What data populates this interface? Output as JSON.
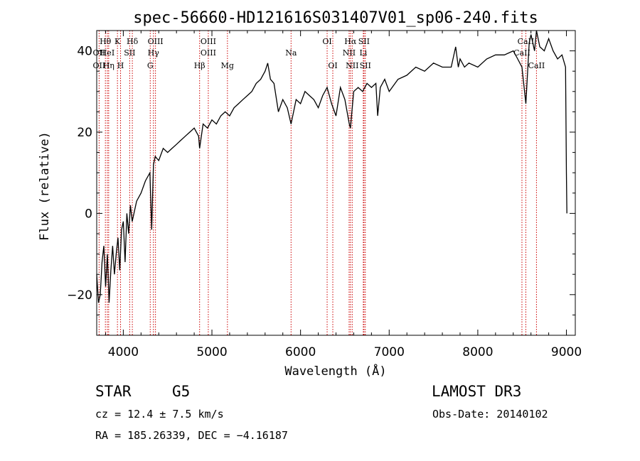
{
  "chart_data": {
    "type": "line",
    "title": "spec-56660-HD121616S031407V01_sp06-240.fits",
    "xlabel": "Wavelength (Å)",
    "ylabel": "Flux (relative)",
    "xlim": [
      3700,
      9100
    ],
    "ylim": [
      -30,
      45
    ],
    "xticks": [
      4000,
      5000,
      6000,
      7000,
      8000,
      9000
    ],
    "xtick_labels": [
      "4000",
      "5000",
      "6000",
      "7000",
      "8000",
      "9000"
    ],
    "yticks": [
      -20,
      0,
      20,
      40
    ],
    "ytick_labels": [
      "−20",
      "0",
      "20",
      "40"
    ],
    "series": [
      {
        "name": "spectrum",
        "x": [
          3700,
          3720,
          3740,
          3760,
          3780,
          3800,
          3820,
          3840,
          3860,
          3880,
          3900,
          3920,
          3940,
          3960,
          3980,
          4000,
          4020,
          4040,
          4060,
          4080,
          4100,
          4150,
          4200,
          4250,
          4300,
          4320,
          4340,
          4360,
          4400,
          4450,
          4500,
          4550,
          4600,
          4650,
          4700,
          4750,
          4800,
          4850,
          4861,
          4900,
          4950,
          5000,
          5050,
          5100,
          5150,
          5200,
          5250,
          5300,
          5350,
          5400,
          5450,
          5500,
          5550,
          5600,
          5630,
          5660,
          5700,
          5750,
          5800,
          5850,
          5893,
          5950,
          6000,
          6050,
          6100,
          6150,
          6200,
          6250,
          6300,
          6350,
          6400,
          6450,
          6500,
          6550,
          6563,
          6600,
          6650,
          6700,
          6750,
          6800,
          6850,
          6870,
          6900,
          6950,
          7000,
          7100,
          7200,
          7300,
          7400,
          7500,
          7600,
          7700,
          7750,
          7780,
          7800,
          7850,
          7900,
          8000,
          8100,
          8200,
          8300,
          8400,
          8450,
          8498,
          8542,
          8580,
          8600,
          8640,
          8662,
          8700,
          8750,
          8800,
          8850,
          8900,
          8950,
          8990,
          9000,
          9005
        ],
        "values": [
          -15,
          -22,
          -20,
          -12,
          -8,
          -18,
          -10,
          -22,
          -14,
          -8,
          -15,
          -10,
          -6,
          -14,
          -4,
          -2,
          -12,
          0,
          -5,
          2,
          -2,
          3,
          5,
          8,
          10,
          -4,
          12,
          14,
          13,
          16,
          15,
          16,
          17,
          18,
          19,
          20,
          21,
          19,
          16,
          22,
          21,
          23,
          22,
          24,
          25,
          24,
          26,
          27,
          28,
          29,
          30,
          32,
          33,
          35,
          37,
          33,
          32,
          25,
          28,
          26,
          22,
          28,
          27,
          30,
          29,
          28,
          26,
          29,
          31,
          27,
          24,
          31,
          28,
          22,
          21,
          30,
          31,
          30,
          32,
          31,
          32,
          24,
          31,
          33,
          30,
          33,
          34,
          36,
          35,
          37,
          36,
          36,
          41,
          36,
          38,
          36,
          37,
          36,
          38,
          39,
          39,
          40,
          38,
          36,
          27,
          42,
          44,
          40,
          45,
          41,
          40,
          43,
          40,
          38,
          39,
          36,
          10,
          0
        ]
      }
    ],
    "emission_lines": [
      {
        "label": "Hθ",
        "wavelength": 3798,
        "row": 1
      },
      {
        "label": "OII",
        "wavelength": 3727,
        "row": 2
      },
      {
        "label": "OII",
        "wavelength": 3727,
        "row": 3
      },
      {
        "label": "HeI",
        "wavelength": 3820,
        "row": 2
      },
      {
        "label": "Hη",
        "wavelength": 3835,
        "row": 3
      },
      {
        "label": "K",
        "wavelength": 3934,
        "row": 1
      },
      {
        "label": "SII",
        "wavelength": 4072,
        "row": 2
      },
      {
        "label": "H",
        "wavelength": 3969,
        "row": 3
      },
      {
        "label": "Hδ",
        "wavelength": 4102,
        "row": 1
      },
      {
        "label": "OIII",
        "wavelength": 4363,
        "row": 1
      },
      {
        "label": "Hγ",
        "wavelength": 4340,
        "row": 2
      },
      {
        "label": "G",
        "wavelength": 4304,
        "row": 3
      },
      {
        "label": "OIII",
        "wavelength": 4959,
        "row": 1
      },
      {
        "label": "OIII",
        "wavelength": 4959,
        "row": 2
      },
      {
        "label": "Hβ",
        "wavelength": 4861,
        "row": 3
      },
      {
        "label": "Mg",
        "wavelength": 5175,
        "row": 3
      },
      {
        "label": "Na",
        "wavelength": 5893,
        "row": 2
      },
      {
        "label": "OI",
        "wavelength": 6300,
        "row": 1
      },
      {
        "label": "OI",
        "wavelength": 6364,
        "row": 3
      },
      {
        "label": "Hα",
        "wavelength": 6563,
        "row": 1
      },
      {
        "label": "SII",
        "wavelength": 6716,
        "row": 1
      },
      {
        "label": "NII",
        "wavelength": 6548,
        "row": 2
      },
      {
        "label": "Li",
        "wavelength": 6708,
        "row": 2
      },
      {
        "label": "NII",
        "wavelength": 6583,
        "row": 3
      },
      {
        "label": "SII",
        "wavelength": 6731,
        "row": 3
      },
      {
        "label": "CaII",
        "wavelength": 8542,
        "row": 1
      },
      {
        "label": "CaII",
        "wavelength": 8498,
        "row": 2
      },
      {
        "label": "CaII",
        "wavelength": 8662,
        "row": 3
      }
    ],
    "line_color": "#cc0000"
  },
  "info": {
    "class": "STAR",
    "subclass": "G5",
    "survey": "LAMOST DR3",
    "cz": "cz = 12.4 ± 7.5 km/s",
    "obs_date": "Obs-Date: 20140102",
    "coords": "RA = 185.26339, DEC =  −4.16187"
  }
}
